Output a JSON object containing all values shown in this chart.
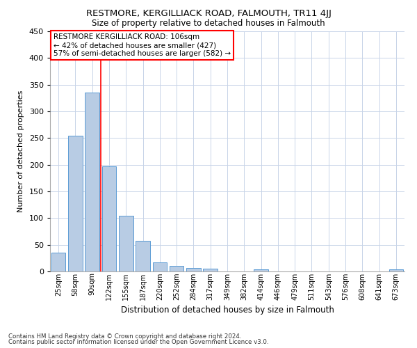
{
  "title": "RESTMORE, KERGILLIACK ROAD, FALMOUTH, TR11 4JJ",
  "subtitle": "Size of property relative to detached houses in Falmouth",
  "xlabel": "Distribution of detached houses by size in Falmouth",
  "ylabel": "Number of detached properties",
  "bar_color": "#b8cce4",
  "bar_edge_color": "#5b9bd5",
  "background_color": "#ffffff",
  "grid_color": "#c8d4e8",
  "categories": [
    "25sqm",
    "58sqm",
    "90sqm",
    "122sqm",
    "155sqm",
    "187sqm",
    "220sqm",
    "252sqm",
    "284sqm",
    "317sqm",
    "349sqm",
    "382sqm",
    "414sqm",
    "446sqm",
    "479sqm",
    "511sqm",
    "543sqm",
    "576sqm",
    "608sqm",
    "641sqm",
    "673sqm"
  ],
  "values": [
    35,
    254,
    335,
    197,
    104,
    57,
    17,
    10,
    7,
    5,
    0,
    0,
    4,
    0,
    0,
    0,
    0,
    0,
    0,
    0,
    4
  ],
  "vline_x": 2.5,
  "annotation_text": "RESTMORE KERGILLIACK ROAD: 106sqm\n← 42% of detached houses are smaller (427)\n57% of semi-detached houses are larger (582) →",
  "ylim_max": 450,
  "yticks": [
    0,
    50,
    100,
    150,
    200,
    250,
    300,
    350,
    400,
    450
  ],
  "footer_line1": "Contains HM Land Registry data © Crown copyright and database right 2024.",
  "footer_line2": "Contains public sector information licensed under the Open Government Licence v3.0."
}
